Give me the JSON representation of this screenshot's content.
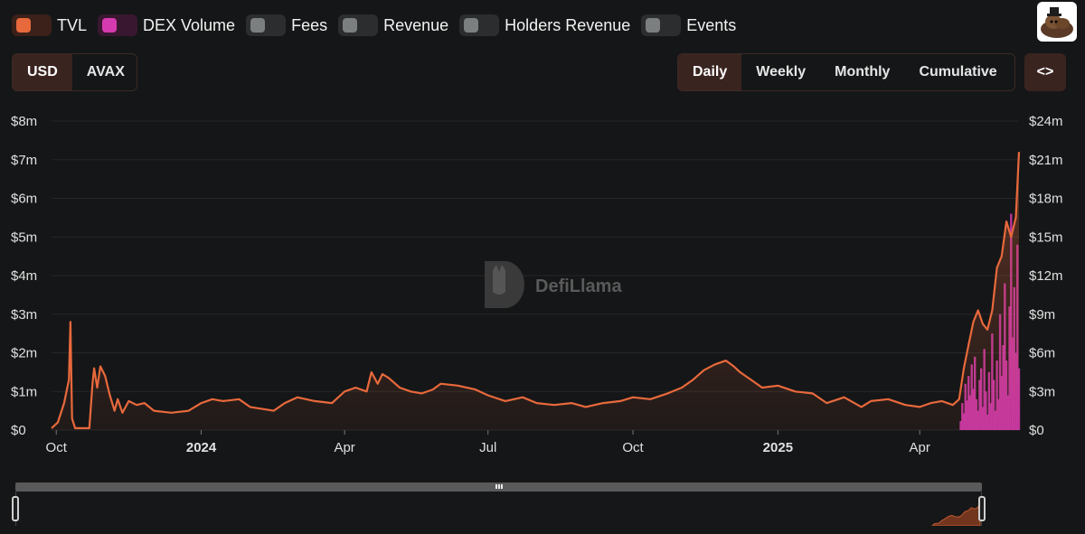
{
  "legend": [
    {
      "label": "TVL",
      "track_color": "#3b2119",
      "knob_color": "#e8693c",
      "active": true
    },
    {
      "label": "DEX Volume",
      "track_color": "#3a1730",
      "knob_color": "#d63ab0",
      "active": true
    },
    {
      "label": "Fees",
      "track_color": "#2c2d2e",
      "knob_color": "#7b7f80",
      "active": false
    },
    {
      "label": "Revenue",
      "track_color": "#2c2d2e",
      "knob_color": "#7b7f80",
      "active": false
    },
    {
      "label": "Holders Revenue",
      "track_color": "#2c2d2e",
      "knob_color": "#7b7f80",
      "active": false
    },
    {
      "label": "Events",
      "track_color": "#2c2d2e",
      "knob_color": "#7b7f80",
      "active": false
    }
  ],
  "currency": {
    "options": [
      "USD",
      "AVAX"
    ],
    "selected": "USD"
  },
  "period": {
    "options": [
      "Daily",
      "Weekly",
      "Monthly",
      "Cumulative"
    ],
    "selected": "Daily"
  },
  "embed_label": "<>",
  "watermark": "DefiLlama",
  "avatar_icon": "llama-avatar-icon",
  "chart_data": {
    "type": "line",
    "x_axis": {
      "range": [
        "2023-09-28",
        "2025-06-03"
      ],
      "ticks": [
        {
          "date": "2023-10-01",
          "label": "Oct",
          "bold": false
        },
        {
          "date": "2024-01-01",
          "label": "2024",
          "bold": true
        },
        {
          "date": "2024-04-01",
          "label": "Apr",
          "bold": false
        },
        {
          "date": "2024-07-01",
          "label": "Jul",
          "bold": false
        },
        {
          "date": "2024-10-01",
          "label": "Oct",
          "bold": false
        },
        {
          "date": "2025-01-01",
          "label": "2025",
          "bold": true
        },
        {
          "date": "2025-04-01",
          "label": "Apr",
          "bold": false
        }
      ]
    },
    "y_left": {
      "min": 0,
      "max": 8000000,
      "ticks": [
        "$0",
        "$1m",
        "$2m",
        "$3m",
        "$4m",
        "$5m",
        "$6m",
        "$7m",
        "$8m"
      ]
    },
    "y_right": {
      "min": 0,
      "max": 24000000,
      "ticks": [
        "$0",
        "$3m",
        "$6m",
        "$9m",
        "$12m",
        "$15m",
        "$18m",
        "$21m",
        "$24m"
      ]
    },
    "grid": true,
    "series": [
      {
        "name": "TVL",
        "axis": "left",
        "color": "#e8693c",
        "points": [
          [
            "2023-09-28",
            0.05
          ],
          [
            "2023-10-02",
            0.2
          ],
          [
            "2023-10-06",
            0.7
          ],
          [
            "2023-10-09",
            1.3
          ],
          [
            "2023-10-10",
            2.8
          ],
          [
            "2023-10-11",
            0.3
          ],
          [
            "2023-10-13",
            0.05
          ],
          [
            "2023-10-22",
            0.05
          ],
          [
            "2023-10-24",
            1.2
          ],
          [
            "2023-10-25",
            1.6
          ],
          [
            "2023-10-27",
            1.1
          ],
          [
            "2023-10-29",
            1.65
          ],
          [
            "2023-11-01",
            1.4
          ],
          [
            "2023-11-04",
            0.9
          ],
          [
            "2023-11-07",
            0.5
          ],
          [
            "2023-11-09",
            0.8
          ],
          [
            "2023-11-12",
            0.45
          ],
          [
            "2023-11-16",
            0.75
          ],
          [
            "2023-11-21",
            0.65
          ],
          [
            "2023-11-26",
            0.7
          ],
          [
            "2023-12-02",
            0.5
          ],
          [
            "2023-12-13",
            0.45
          ],
          [
            "2023-12-24",
            0.5
          ],
          [
            "2024-01-01",
            0.7
          ],
          [
            "2024-01-08",
            0.8
          ],
          [
            "2024-01-15",
            0.75
          ],
          [
            "2024-01-25",
            0.8
          ],
          [
            "2024-02-01",
            0.6
          ],
          [
            "2024-02-16",
            0.5
          ],
          [
            "2024-02-23",
            0.7
          ],
          [
            "2024-03-02",
            0.85
          ],
          [
            "2024-03-13",
            0.75
          ],
          [
            "2024-03-24",
            0.7
          ],
          [
            "2024-04-01",
            1.0
          ],
          [
            "2024-04-08",
            1.1
          ],
          [
            "2024-04-15",
            1.0
          ],
          [
            "2024-04-18",
            1.5
          ],
          [
            "2024-04-22",
            1.2
          ],
          [
            "2024-04-25",
            1.45
          ],
          [
            "2024-04-29",
            1.35
          ],
          [
            "2024-05-06",
            1.1
          ],
          [
            "2024-05-13",
            1.0
          ],
          [
            "2024-05-20",
            0.95
          ],
          [
            "2024-05-27",
            1.05
          ],
          [
            "2024-06-01",
            1.2
          ],
          [
            "2024-06-12",
            1.15
          ],
          [
            "2024-06-23",
            1.05
          ],
          [
            "2024-07-01",
            0.9
          ],
          [
            "2024-07-12",
            0.75
          ],
          [
            "2024-07-23",
            0.85
          ],
          [
            "2024-08-01",
            0.7
          ],
          [
            "2024-08-12",
            0.65
          ],
          [
            "2024-08-23",
            0.7
          ],
          [
            "2024-09-01",
            0.6
          ],
          [
            "2024-09-12",
            0.7
          ],
          [
            "2024-09-23",
            0.75
          ],
          [
            "2024-10-01",
            0.85
          ],
          [
            "2024-10-12",
            0.8
          ],
          [
            "2024-10-23",
            0.95
          ],
          [
            "2024-11-01",
            1.1
          ],
          [
            "2024-11-08",
            1.3
          ],
          [
            "2024-11-15",
            1.55
          ],
          [
            "2024-11-22",
            1.7
          ],
          [
            "2024-11-29",
            1.8
          ],
          [
            "2024-12-04",
            1.65
          ],
          [
            "2024-12-08",
            1.5
          ],
          [
            "2024-12-15",
            1.3
          ],
          [
            "2024-12-22",
            1.1
          ],
          [
            "2025-01-01",
            1.15
          ],
          [
            "2025-01-12",
            1.0
          ],
          [
            "2025-01-23",
            0.95
          ],
          [
            "2025-02-01",
            0.7
          ],
          [
            "2025-02-12",
            0.85
          ],
          [
            "2025-02-23",
            0.6
          ],
          [
            "2025-03-01",
            0.75
          ],
          [
            "2025-03-12",
            0.8
          ],
          [
            "2025-03-23",
            0.65
          ],
          [
            "2025-04-01",
            0.6
          ],
          [
            "2025-04-08",
            0.7
          ],
          [
            "2025-04-15",
            0.75
          ],
          [
            "2025-04-22",
            0.65
          ],
          [
            "2025-04-26",
            0.8
          ],
          [
            "2025-04-29",
            1.6
          ],
          [
            "2025-05-02",
            2.2
          ],
          [
            "2025-05-05",
            2.8
          ],
          [
            "2025-05-08",
            3.1
          ],
          [
            "2025-05-11",
            2.75
          ],
          [
            "2025-05-14",
            2.6
          ],
          [
            "2025-05-17",
            3.1
          ],
          [
            "2025-05-20",
            4.2
          ],
          [
            "2025-05-23",
            4.5
          ],
          [
            "2025-05-26",
            5.4
          ],
          [
            "2025-05-29",
            5.0
          ],
          [
            "2025-06-01",
            5.5
          ],
          [
            "2025-06-03",
            7.2
          ]
        ]
      },
      {
        "name": "DEX Volume",
        "axis": "right",
        "color": "#d63ab0",
        "type": "bar",
        "points": [
          [
            "2025-04-27",
            0.7
          ],
          [
            "2025-04-28",
            2.1
          ],
          [
            "2025-04-29",
            1.3
          ],
          [
            "2025-04-30",
            3.6
          ],
          [
            "2025-05-01",
            2.3
          ],
          [
            "2025-05-02",
            4.2
          ],
          [
            "2025-05-03",
            2.7
          ],
          [
            "2025-05-04",
            5.1
          ],
          [
            "2025-05-05",
            3.2
          ],
          [
            "2025-05-06",
            5.7
          ],
          [
            "2025-05-07",
            2.4
          ],
          [
            "2025-05-08",
            1.5
          ],
          [
            "2025-05-09",
            3.9
          ],
          [
            "2025-05-10",
            4.8
          ],
          [
            "2025-05-11",
            1.8
          ],
          [
            "2025-05-12",
            6.3
          ],
          [
            "2025-05-13",
            3.0
          ],
          [
            "2025-05-14",
            1.2
          ],
          [
            "2025-05-15",
            4.5
          ],
          [
            "2025-05-16",
            2.1
          ],
          [
            "2025-05-17",
            7.5
          ],
          [
            "2025-05-18",
            3.9
          ],
          [
            "2025-05-19",
            1.5
          ],
          [
            "2025-05-20",
            5.4
          ],
          [
            "2025-05-21",
            2.4
          ],
          [
            "2025-05-22",
            9.0
          ],
          [
            "2025-05-23",
            4.2
          ],
          [
            "2025-05-24",
            6.6
          ],
          [
            "2025-05-25",
            11.4
          ],
          [
            "2025-05-26",
            5.4
          ],
          [
            "2025-05-27",
            2.7
          ],
          [
            "2025-05-28",
            9.6
          ],
          [
            "2025-05-29",
            16.8
          ],
          [
            "2025-05-30",
            7.2
          ],
          [
            "2025-05-31",
            11.1
          ],
          [
            "2025-06-01",
            6.0
          ],
          [
            "2025-06-02",
            14.4
          ],
          [
            "2025-06-03",
            4.8
          ]
        ]
      }
    ]
  }
}
